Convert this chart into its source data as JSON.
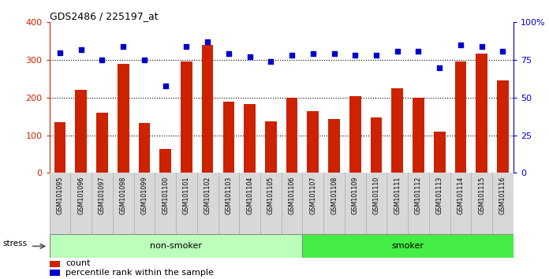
{
  "title": "GDS2486 / 225197_at",
  "samples": [
    "GSM101095",
    "GSM101096",
    "GSM101097",
    "GSM101098",
    "GSM101099",
    "GSM101100",
    "GSM101101",
    "GSM101102",
    "GSM101103",
    "GSM101104",
    "GSM101105",
    "GSM101106",
    "GSM101107",
    "GSM101108",
    "GSM101109",
    "GSM101110",
    "GSM101111",
    "GSM101112",
    "GSM101113",
    "GSM101114",
    "GSM101115",
    "GSM101116"
  ],
  "counts": [
    135,
    220,
    160,
    290,
    133,
    63,
    295,
    340,
    190,
    183,
    137,
    200,
    165,
    143,
    205,
    148,
    225,
    200,
    110,
    295,
    318,
    245
  ],
  "percentile_ranks": [
    80,
    82,
    75,
    84,
    75,
    58,
    84,
    87,
    79,
    77,
    74,
    78,
    79,
    79,
    78,
    78,
    81,
    81,
    70,
    85,
    84,
    81
  ],
  "bar_color": "#cc2200",
  "dot_color": "#0000cc",
  "non_smoker_count": 12,
  "smoker_count": 10,
  "non_smoker_color": "#bbffbb",
  "smoker_color": "#44ee44",
  "stress_label": "stress",
  "non_smoker_label": "non-smoker",
  "smoker_label": "smoker",
  "legend_count_label": "count",
  "legend_pct_label": "percentile rank within the sample",
  "ylim_left": [
    0,
    400
  ],
  "ylim_right": [
    0,
    100
  ],
  "yticks_left": [
    0,
    100,
    200,
    300,
    400
  ],
  "yticks_right": [
    0,
    25,
    50,
    75,
    100
  ],
  "ytick_labels_right": [
    "0",
    "25",
    "50",
    "75",
    "100%"
  ],
  "bg_color": "#ffffff",
  "grid_lines": [
    100,
    200,
    300
  ],
  "plot_bg": "#ffffff",
  "xtick_bg": "#d8d8d8"
}
